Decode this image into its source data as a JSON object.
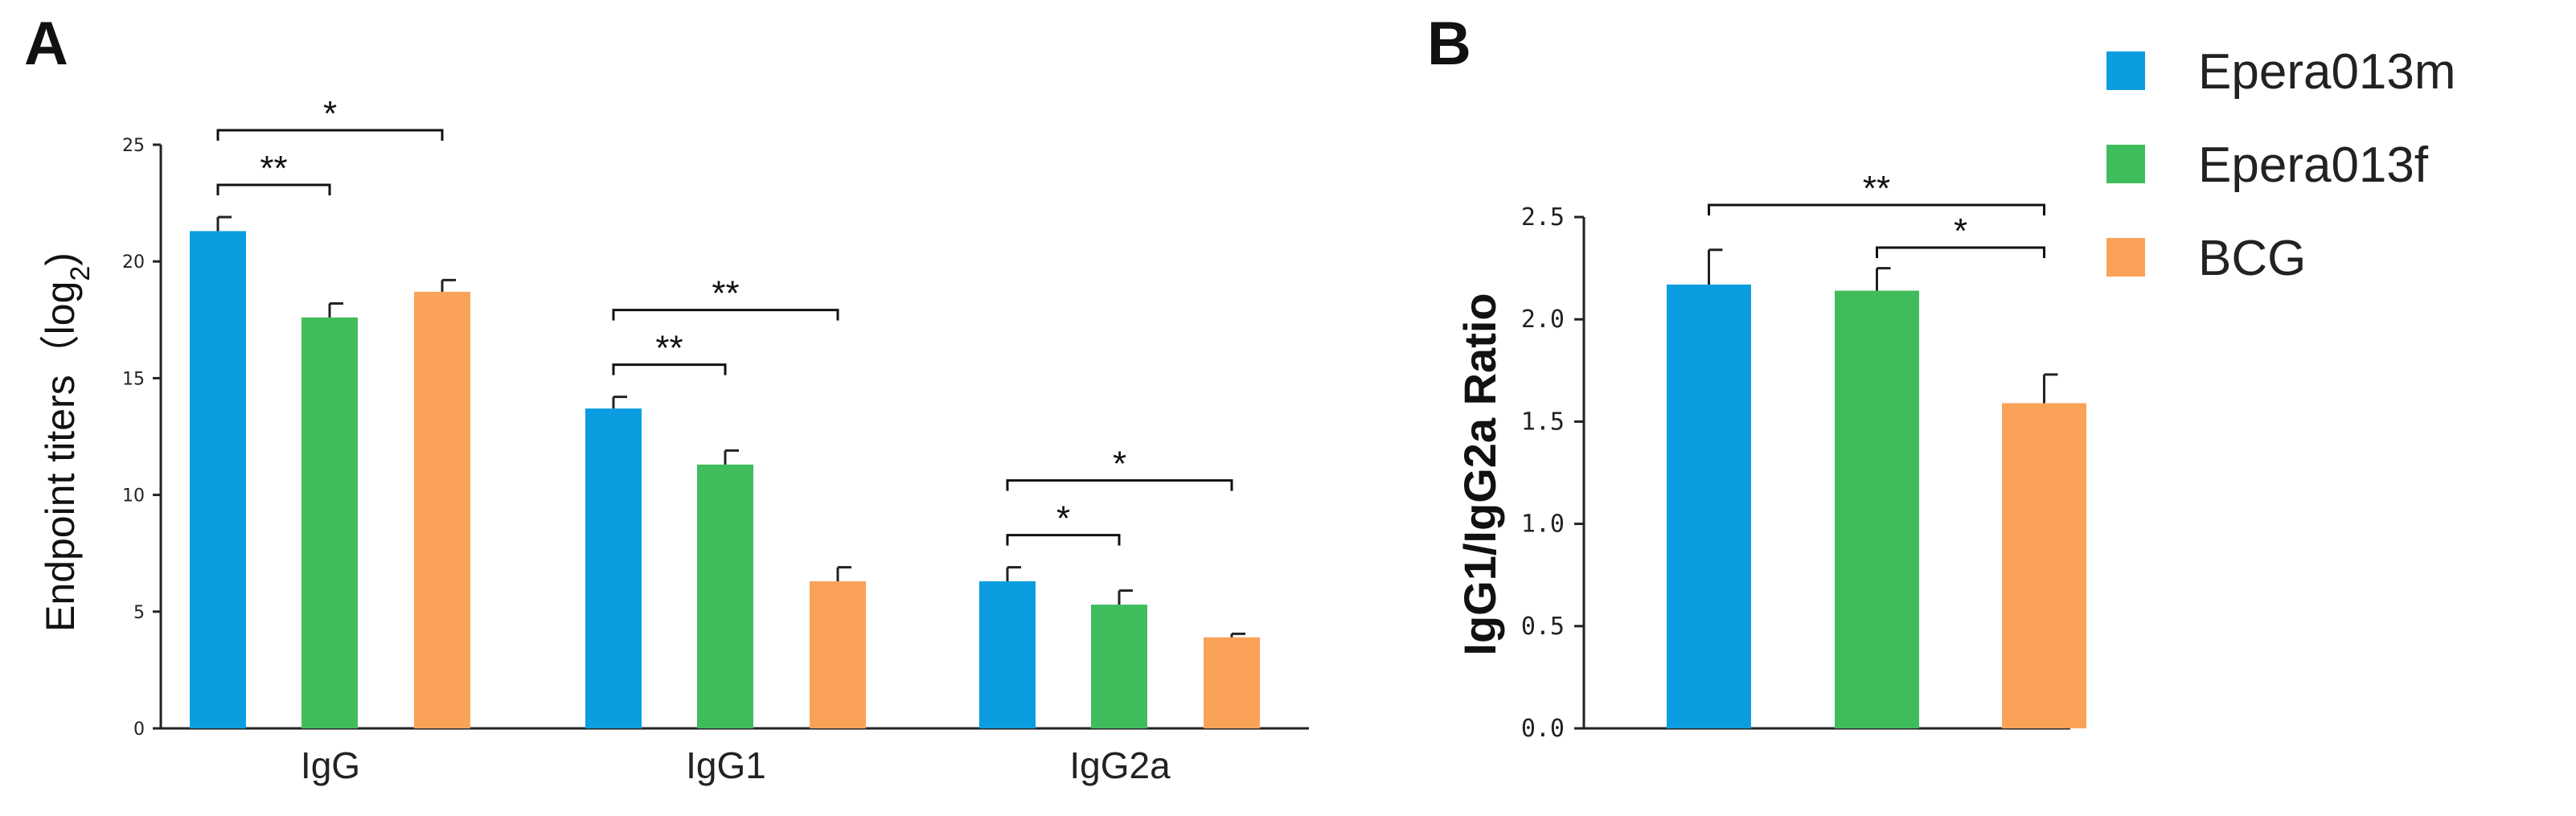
{
  "chart_data": [
    {
      "panel": "A",
      "type": "bar",
      "ylabel": "Endpoint titers（log",
      "ylabel_sub": "2",
      "ylabel_close": ")",
      "ylim": [
        0,
        25
      ],
      "yticks": [
        "0",
        "5",
        "10",
        "15",
        "20",
        "25"
      ],
      "categories": [
        "IgG",
        "IgG1",
        "IgG2a"
      ],
      "series": [
        {
          "name": "Epera013m",
          "values": [
            21.3,
            13.7,
            6.3
          ],
          "errors": [
            0.6,
            0.5,
            0.6
          ]
        },
        {
          "name": "Epera013f",
          "values": [
            17.6,
            11.3,
            5.3
          ],
          "errors": [
            0.6,
            0.6,
            0.6
          ]
        },
        {
          "name": "BCG",
          "values": [
            18.7,
            6.3,
            3.9
          ],
          "errors": [
            0.5,
            0.6,
            0.15
          ]
        }
      ],
      "significance": [
        {
          "category": 0,
          "from": 0,
          "to": 1,
          "label": "**"
        },
        {
          "category": 0,
          "from": 0,
          "to": 2,
          "label": "*"
        },
        {
          "category": 1,
          "from": 0,
          "to": 1,
          "label": "**"
        },
        {
          "category": 1,
          "from": 0,
          "to": 2,
          "label": "**"
        },
        {
          "category": 2,
          "from": 0,
          "to": 1,
          "label": "*"
        },
        {
          "category": 2,
          "from": 0,
          "to": 2,
          "label": "*"
        }
      ]
    },
    {
      "panel": "B",
      "type": "bar",
      "ylabel": "IgG1/IgG2a Ratio",
      "ylim": [
        0,
        2.5
      ],
      "yticks": [
        "0.0",
        "0.5",
        "1.0",
        "1.5",
        "2.0",
        "2.5"
      ],
      "categories": [
        "Epera013m",
        "Epera013f",
        "BCG"
      ],
      "values": [
        2.17,
        2.14,
        1.59
      ],
      "errors": [
        0.17,
        0.11,
        0.14
      ],
      "significance": [
        {
          "from": 0,
          "to": 2,
          "label": "**"
        },
        {
          "from": 1,
          "to": 2,
          "label": "*"
        }
      ]
    }
  ],
  "legend": [
    {
      "label": "Epera013m",
      "color": "#0c9de0"
    },
    {
      "label": "Epera013f",
      "color": "#3fbd5c"
    },
    {
      "label": "BCG",
      "color": "#fba259"
    }
  ]
}
